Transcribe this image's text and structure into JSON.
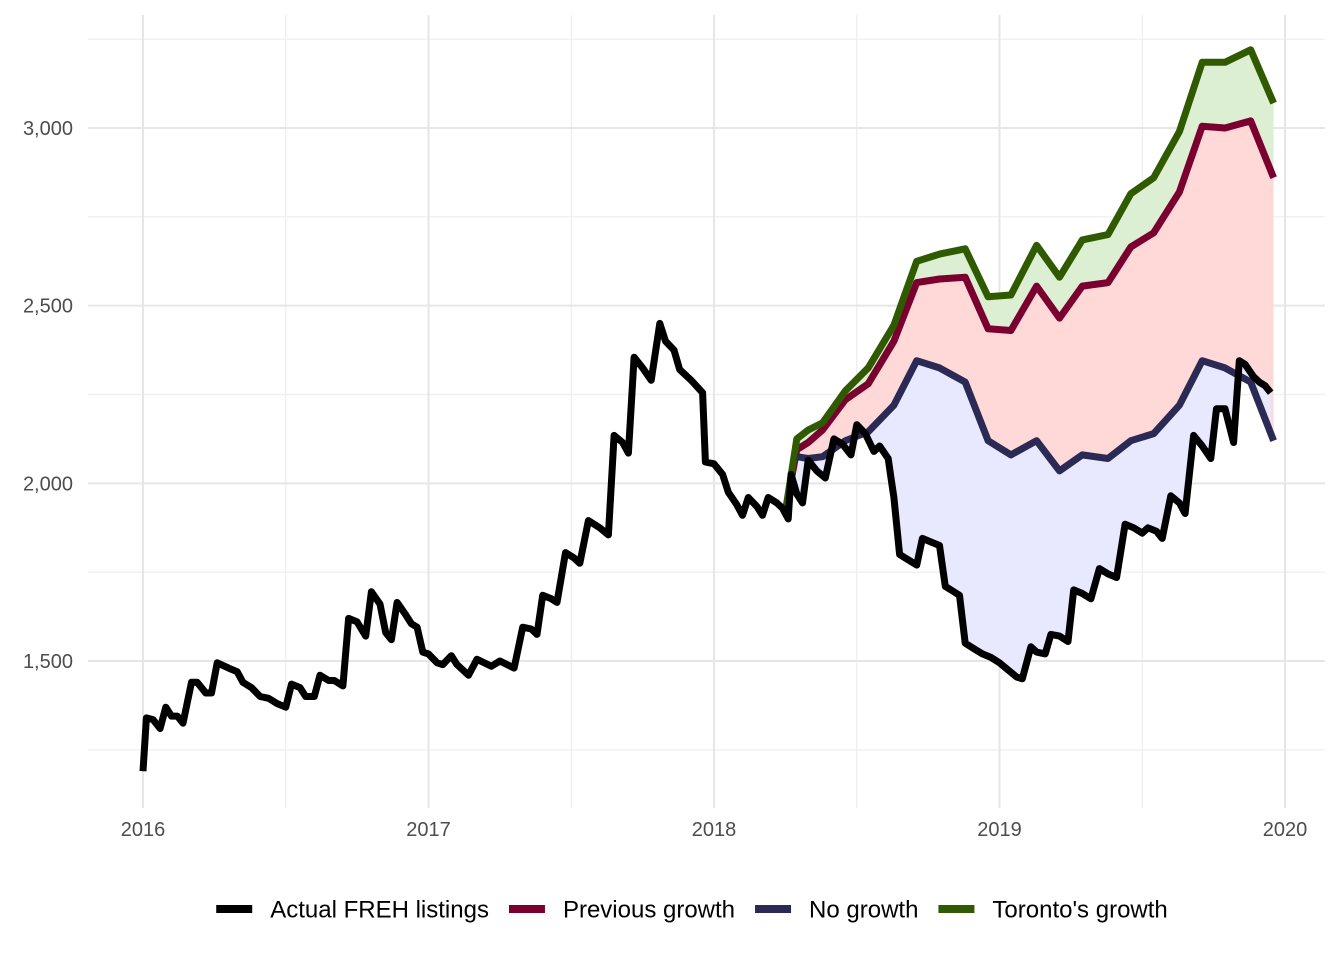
{
  "chart_data": {
    "type": "line",
    "title": "",
    "xlabel": "",
    "ylabel": "",
    "xlim": [
      2015.8,
      2020.1
    ],
    "ylim": [
      1100,
      3300
    ],
    "x_ticks": [
      {
        "value": 2016,
        "label": "2016"
      },
      {
        "value": 2017,
        "label": "2017"
      },
      {
        "value": 2018,
        "label": "2018"
      },
      {
        "value": 2019,
        "label": "2019"
      },
      {
        "value": 2020,
        "label": "2020"
      }
    ],
    "y_ticks": [
      {
        "value": 1500,
        "label": "1,500"
      },
      {
        "value": 2000,
        "label": "2,000"
      },
      {
        "value": 2500,
        "label": "2,500"
      },
      {
        "value": 3000,
        "label": "3,000"
      }
    ],
    "y_minor_ticks": [
      1250,
      1750,
      2250,
      2750,
      3250
    ],
    "x_minor_ticks": [
      2016.5,
      2017.5,
      2018.5,
      2019.5
    ],
    "legend": {
      "position": "bottom",
      "entries": [
        {
          "label": "Actual FREH listings",
          "color": "#000000"
        },
        {
          "label": "Previous growth",
          "color": "#7a0030"
        },
        {
          "label": "No growth",
          "color": "#2b2a55"
        },
        {
          "label": "Toronto's growth",
          "color": "#2f5a00"
        }
      ]
    },
    "bands": [
      {
        "name": "toronto-band",
        "color": "#dcefd2",
        "upper": "Toronto's growth",
        "lower": "Previous growth"
      },
      {
        "name": "previous-band",
        "color": "#ffd8d8",
        "upper": "Previous growth",
        "lower": "No growth"
      },
      {
        "name": "actual-band",
        "color": "#e8e8ff",
        "upper": "No growth",
        "lower": "Actual FREH listings"
      }
    ],
    "series": [
      {
        "name": "Actual FREH listings",
        "color": "#000000",
        "points": [
          [
            2016.0,
            1190
          ],
          [
            2016.012,
            1340
          ],
          [
            2016.035,
            1335
          ],
          [
            2016.06,
            1310
          ],
          [
            2016.08,
            1370
          ],
          [
            2016.1,
            1345
          ],
          [
            2016.12,
            1345
          ],
          [
            2016.14,
            1325
          ],
          [
            2016.17,
            1440
          ],
          [
            2016.19,
            1440
          ],
          [
            2016.22,
            1410
          ],
          [
            2016.24,
            1410
          ],
          [
            2016.26,
            1495
          ],
          [
            2016.3,
            1480
          ],
          [
            2016.33,
            1470
          ],
          [
            2016.35,
            1440
          ],
          [
            2016.38,
            1425
          ],
          [
            2016.41,
            1400
          ],
          [
            2016.44,
            1395
          ],
          [
            2016.47,
            1380
          ],
          [
            2016.5,
            1370
          ],
          [
            2016.52,
            1435
          ],
          [
            2016.55,
            1425
          ],
          [
            2016.57,
            1400
          ],
          [
            2016.6,
            1400
          ],
          [
            2016.62,
            1460
          ],
          [
            2016.65,
            1445
          ],
          [
            2016.67,
            1445
          ],
          [
            2016.7,
            1430
          ],
          [
            2016.72,
            1620
          ],
          [
            2016.75,
            1610
          ],
          [
            2016.78,
            1570
          ],
          [
            2016.8,
            1695
          ],
          [
            2016.83,
            1660
          ],
          [
            2016.85,
            1580
          ],
          [
            2016.87,
            1560
          ],
          [
            2016.89,
            1665
          ],
          [
            2016.92,
            1630
          ],
          [
            2016.94,
            1605
          ],
          [
            2016.96,
            1595
          ],
          [
            2016.98,
            1525
          ],
          [
            2017.0,
            1520
          ],
          [
            2017.03,
            1495
          ],
          [
            2017.05,
            1490
          ],
          [
            2017.08,
            1515
          ],
          [
            2017.1,
            1490
          ],
          [
            2017.14,
            1460
          ],
          [
            2017.17,
            1505
          ],
          [
            2017.22,
            1485
          ],
          [
            2017.25,
            1500
          ],
          [
            2017.3,
            1480
          ],
          [
            2017.33,
            1595
          ],
          [
            2017.36,
            1590
          ],
          [
            2017.38,
            1575
          ],
          [
            2017.4,
            1685
          ],
          [
            2017.43,
            1675
          ],
          [
            2017.45,
            1665
          ],
          [
            2017.48,
            1805
          ],
          [
            2017.51,
            1790
          ],
          [
            2017.53,
            1775
          ],
          [
            2017.56,
            1895
          ],
          [
            2017.6,
            1875
          ],
          [
            2017.63,
            1855
          ],
          [
            2017.65,
            2135
          ],
          [
            2017.68,
            2115
          ],
          [
            2017.7,
            2085
          ],
          [
            2017.72,
            2355
          ],
          [
            2017.75,
            2325
          ],
          [
            2017.78,
            2290
          ],
          [
            2017.81,
            2450
          ],
          [
            2017.83,
            2400
          ],
          [
            2017.86,
            2375
          ],
          [
            2017.88,
            2320
          ],
          [
            2017.92,
            2290
          ],
          [
            2017.96,
            2255
          ],
          [
            2017.97,
            2060
          ],
          [
            2018.0,
            2055
          ],
          [
            2018.03,
            2025
          ],
          [
            2018.05,
            1975
          ],
          [
            2018.08,
            1940
          ],
          [
            2018.1,
            1910
          ],
          [
            2018.12,
            1960
          ],
          [
            2018.15,
            1935
          ],
          [
            2018.17,
            1910
          ],
          [
            2018.19,
            1960
          ],
          [
            2018.22,
            1945
          ],
          [
            2018.24,
            1930
          ],
          [
            2018.26,
            1900
          ],
          [
            2018.27,
            2025
          ],
          [
            2018.29,
            1970
          ],
          [
            2018.31,
            1945
          ],
          [
            2018.33,
            2065
          ],
          [
            2018.36,
            2035
          ],
          [
            2018.39,
            2015
          ],
          [
            2018.42,
            2125
          ],
          [
            2018.45,
            2110
          ],
          [
            2018.48,
            2080
          ],
          [
            2018.5,
            2165
          ],
          [
            2018.53,
            2140
          ],
          [
            2018.56,
            2090
          ],
          [
            2018.58,
            2105
          ],
          [
            2018.61,
            2070
          ],
          [
            2018.62,
            2015
          ],
          [
            2018.63,
            1960
          ],
          [
            2018.65,
            1800
          ],
          [
            2018.67,
            1790
          ],
          [
            2018.69,
            1780
          ],
          [
            2018.71,
            1770
          ],
          [
            2018.73,
            1845
          ],
          [
            2018.76,
            1835
          ],
          [
            2018.79,
            1825
          ],
          [
            2018.81,
            1710
          ],
          [
            2018.84,
            1695
          ],
          [
            2018.86,
            1685
          ],
          [
            2018.88,
            1550
          ],
          [
            2018.91,
            1535
          ],
          [
            2018.94,
            1520
          ],
          [
            2018.97,
            1510
          ],
          [
            2019.0,
            1495
          ],
          [
            2019.03,
            1475
          ],
          [
            2019.06,
            1455
          ],
          [
            2019.08,
            1450
          ],
          [
            2019.11,
            1540
          ],
          [
            2019.13,
            1525
          ],
          [
            2019.16,
            1520
          ],
          [
            2019.18,
            1575
          ],
          [
            2019.21,
            1570
          ],
          [
            2019.24,
            1555
          ],
          [
            2019.26,
            1700
          ],
          [
            2019.29,
            1690
          ],
          [
            2019.32,
            1675
          ],
          [
            2019.35,
            1760
          ],
          [
            2019.38,
            1745
          ],
          [
            2019.41,
            1735
          ],
          [
            2019.44,
            1885
          ],
          [
            2019.47,
            1875
          ],
          [
            2019.5,
            1860
          ],
          [
            2019.52,
            1875
          ],
          [
            2019.55,
            1865
          ],
          [
            2019.57,
            1845
          ],
          [
            2019.6,
            1965
          ],
          [
            2019.63,
            1945
          ],
          [
            2019.65,
            1915
          ],
          [
            2019.68,
            2135
          ],
          [
            2019.71,
            2105
          ],
          [
            2019.74,
            2070
          ],
          [
            2019.76,
            2210
          ],
          [
            2019.79,
            2210
          ],
          [
            2019.82,
            2115
          ],
          [
            2019.84,
            2345
          ],
          [
            2019.86,
            2335
          ],
          [
            2019.89,
            2300
          ],
          [
            2019.91,
            2285
          ],
          [
            2019.93,
            2275
          ],
          [
            2019.95,
            2255
          ]
        ]
      },
      {
        "name": "Previous growth",
        "color": "#7a0030",
        "points": [
          [
            2018.25,
            1920
          ],
          [
            2018.29,
            2095
          ],
          [
            2018.33,
            2115
          ],
          [
            2018.38,
            2150
          ],
          [
            2018.46,
            2235
          ],
          [
            2018.54,
            2280
          ],
          [
            2018.63,
            2400
          ],
          [
            2018.71,
            2565
          ],
          [
            2018.79,
            2575
          ],
          [
            2018.88,
            2580
          ],
          [
            2018.96,
            2435
          ],
          [
            2019.04,
            2430
          ],
          [
            2019.13,
            2555
          ],
          [
            2019.21,
            2465
          ],
          [
            2019.29,
            2555
          ],
          [
            2019.38,
            2565
          ],
          [
            2019.46,
            2665
          ],
          [
            2019.54,
            2705
          ],
          [
            2019.63,
            2820
          ],
          [
            2019.71,
            3005
          ],
          [
            2019.79,
            3000
          ],
          [
            2019.88,
            3020
          ],
          [
            2019.96,
            2860
          ]
        ]
      },
      {
        "name": "No growth",
        "color": "#2b2a55",
        "points": [
          [
            2018.29,
            2075
          ],
          [
            2018.33,
            2070
          ],
          [
            2018.38,
            2075
          ],
          [
            2018.46,
            2120
          ],
          [
            2018.54,
            2145
          ],
          [
            2018.63,
            2220
          ],
          [
            2018.71,
            2345
          ],
          [
            2018.79,
            2325
          ],
          [
            2018.88,
            2285
          ],
          [
            2018.96,
            2120
          ],
          [
            2019.04,
            2080
          ],
          [
            2019.13,
            2120
          ],
          [
            2019.21,
            2035
          ],
          [
            2019.29,
            2080
          ],
          [
            2019.38,
            2070
          ],
          [
            2019.46,
            2120
          ],
          [
            2019.54,
            2140
          ],
          [
            2019.63,
            2220
          ],
          [
            2019.71,
            2345
          ],
          [
            2019.79,
            2325
          ],
          [
            2019.88,
            2285
          ],
          [
            2019.96,
            2120
          ]
        ]
      },
      {
        "name": "Toronto's growth",
        "color": "#2f5a00",
        "points": [
          [
            2018.25,
            1920
          ],
          [
            2018.29,
            2125
          ],
          [
            2018.33,
            2150
          ],
          [
            2018.38,
            2170
          ],
          [
            2018.46,
            2260
          ],
          [
            2018.54,
            2325
          ],
          [
            2018.63,
            2445
          ],
          [
            2018.71,
            2625
          ],
          [
            2018.79,
            2645
          ],
          [
            2018.88,
            2660
          ],
          [
            2018.96,
            2525
          ],
          [
            2019.04,
            2530
          ],
          [
            2019.13,
            2670
          ],
          [
            2019.21,
            2580
          ],
          [
            2019.29,
            2685
          ],
          [
            2019.38,
            2700
          ],
          [
            2019.46,
            2815
          ],
          [
            2019.54,
            2860
          ],
          [
            2019.63,
            2990
          ],
          [
            2019.71,
            3185
          ],
          [
            2019.79,
            3185
          ],
          [
            2019.88,
            3220
          ],
          [
            2019.96,
            3070
          ]
        ]
      }
    ]
  }
}
